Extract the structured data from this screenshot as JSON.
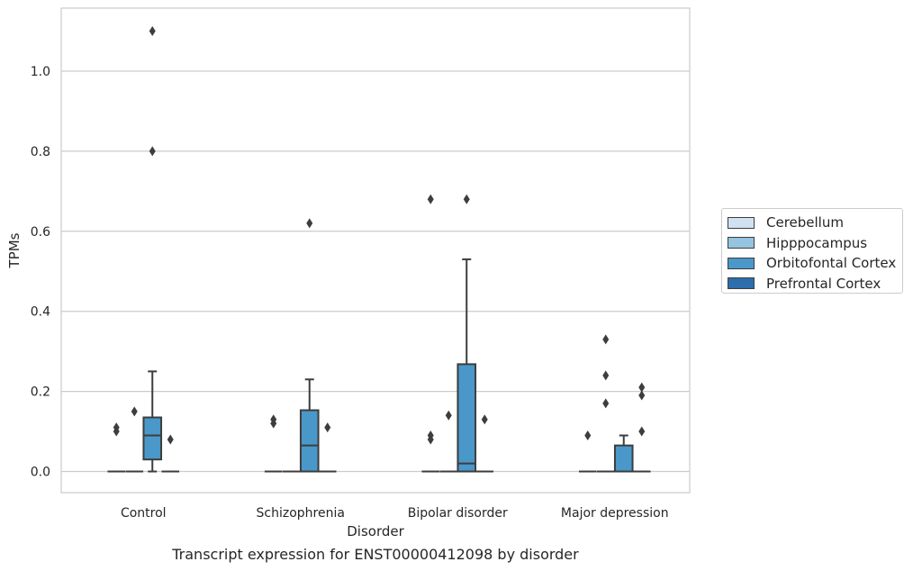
{
  "chart_data": {
    "type": "box",
    "title": "",
    "caption": "Transcript expression for ENST00000412098 by disorder",
    "xlabel": "Disorder",
    "ylabel": "TPMs",
    "ylim": [
      -0.055,
      1.16
    ],
    "yticks": [
      "0.0",
      "0.2",
      "0.4",
      "0.6",
      "0.8",
      "1.0"
    ],
    "ytick_values": [
      0.0,
      0.2,
      0.4,
      0.6,
      0.8,
      1.0
    ],
    "grid": "horizontal",
    "legend_position": "right",
    "categories": [
      "Control",
      "Schizophrenia",
      "Bipolar disorder",
      "Major depression"
    ],
    "series": [
      {
        "name": "Cerebellum",
        "color": "#d0e1f2",
        "boxes": [
          {
            "q1": 0,
            "median": 0,
            "q3": 0,
            "whisker_low": 0,
            "whisker_high": 0,
            "outliers": [
              0.1,
              0.11
            ]
          },
          {
            "q1": 0,
            "median": 0,
            "q3": 0,
            "whisker_low": 0,
            "whisker_high": 0,
            "outliers": [
              0.12,
              0.13
            ]
          },
          {
            "q1": 0,
            "median": 0,
            "q3": 0,
            "whisker_low": 0,
            "whisker_high": 0,
            "outliers": [
              0.08,
              0.09,
              0.68
            ]
          },
          {
            "q1": 0,
            "median": 0,
            "q3": 0,
            "whisker_low": 0,
            "whisker_high": 0,
            "outliers": [
              0.09
            ]
          }
        ]
      },
      {
        "name": "Hipppocampus",
        "color": "#94c4df",
        "boxes": [
          {
            "q1": 0,
            "median": 0,
            "q3": 0,
            "whisker_low": 0,
            "whisker_high": 0,
            "outliers": [
              0.15
            ]
          },
          {
            "q1": 0,
            "median": 0,
            "q3": 0,
            "whisker_low": 0,
            "whisker_high": 0,
            "outliers": []
          },
          {
            "q1": 0,
            "median": 0,
            "q3": 0,
            "whisker_low": 0,
            "whisker_high": 0,
            "outliers": [
              0.14
            ]
          },
          {
            "q1": 0,
            "median": 0,
            "q3": 0,
            "whisker_low": 0,
            "whisker_high": 0,
            "outliers": [
              0.24,
              0.33,
              0.17
            ]
          }
        ]
      },
      {
        "name": "Orbitofontal Cortex",
        "color": "#4a98c9",
        "boxes": [
          {
            "q1": 0.03,
            "median": 0.09,
            "q3": 0.135,
            "whisker_low": 0,
            "whisker_high": 0.25,
            "outliers": [
              0.8,
              1.1
            ]
          },
          {
            "q1": 0,
            "median": 0.065,
            "q3": 0.153,
            "whisker_low": 0,
            "whisker_high": 0.23,
            "outliers": [
              0.62
            ]
          },
          {
            "q1": 0,
            "median": 0.02,
            "q3": 0.268,
            "whisker_low": 0,
            "whisker_high": 0.53,
            "outliers": [
              0.68
            ]
          },
          {
            "q1": 0,
            "median": 0,
            "q3": 0.065,
            "whisker_low": 0,
            "whisker_high": 0.09,
            "outliers": []
          }
        ]
      },
      {
        "name": "Prefrontal Cortex",
        "color": "#2e6ead",
        "boxes": [
          {
            "q1": 0,
            "median": 0,
            "q3": 0,
            "whisker_low": 0,
            "whisker_high": 0,
            "outliers": [
              0.08
            ]
          },
          {
            "q1": 0,
            "median": 0,
            "q3": 0,
            "whisker_low": 0,
            "whisker_high": 0,
            "outliers": [
              0.11
            ]
          },
          {
            "q1": 0,
            "median": 0,
            "q3": 0,
            "whisker_low": 0,
            "whisker_high": 0,
            "outliers": [
              0.13
            ]
          },
          {
            "q1": 0,
            "median": 0,
            "q3": 0,
            "whisker_low": 0,
            "whisker_high": 0,
            "outliers": [
              0.1,
              0.19,
              0.21
            ]
          }
        ]
      }
    ]
  }
}
